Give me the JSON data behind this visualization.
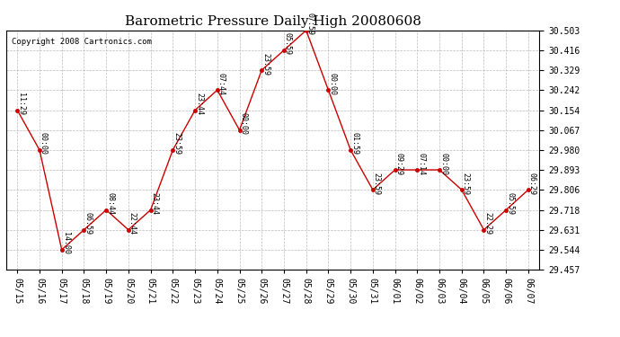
{
  "title": "Barometric Pressure Daily High 20080608",
  "copyright": "Copyright 2008 Cartronics.com",
  "x_labels": [
    "05/15",
    "05/16",
    "05/17",
    "05/18",
    "05/19",
    "05/20",
    "05/21",
    "05/22",
    "05/23",
    "05/24",
    "05/25",
    "05/26",
    "05/27",
    "05/28",
    "05/29",
    "05/30",
    "05/31",
    "06/01",
    "06/02",
    "06/03",
    "06/04",
    "06/05",
    "06/06",
    "06/07"
  ],
  "y_values": [
    30.154,
    29.98,
    29.544,
    29.631,
    29.718,
    29.631,
    29.718,
    29.98,
    30.154,
    30.242,
    30.067,
    30.329,
    30.416,
    30.503,
    30.242,
    29.98,
    29.806,
    29.893,
    29.893,
    29.893,
    29.806,
    29.631,
    29.718,
    29.806
  ],
  "time_labels": [
    "11:29",
    "00:00",
    "14:00",
    "06:59",
    "08:44",
    "22:44",
    "23:44",
    "23:59",
    "23:44",
    "07:44",
    "00:00",
    "23:59",
    "05:59",
    "07:59",
    "00:00",
    "01:59",
    "23:59",
    "09:29",
    "07:14",
    "00:00",
    "23:59",
    "22:29",
    "05:59",
    "06:29"
  ],
  "y_ticks": [
    29.457,
    29.544,
    29.631,
    29.718,
    29.806,
    29.893,
    29.98,
    30.067,
    30.154,
    30.242,
    30.329,
    30.416,
    30.503
  ],
  "line_color": "#cc0000",
  "marker_color": "#cc0000",
  "bg_color": "#ffffff",
  "grid_color": "#bbbbbb",
  "title_fontsize": 11,
  "tick_fontsize": 7,
  "annot_fontsize": 6,
  "copyright_fontsize": 6.5
}
